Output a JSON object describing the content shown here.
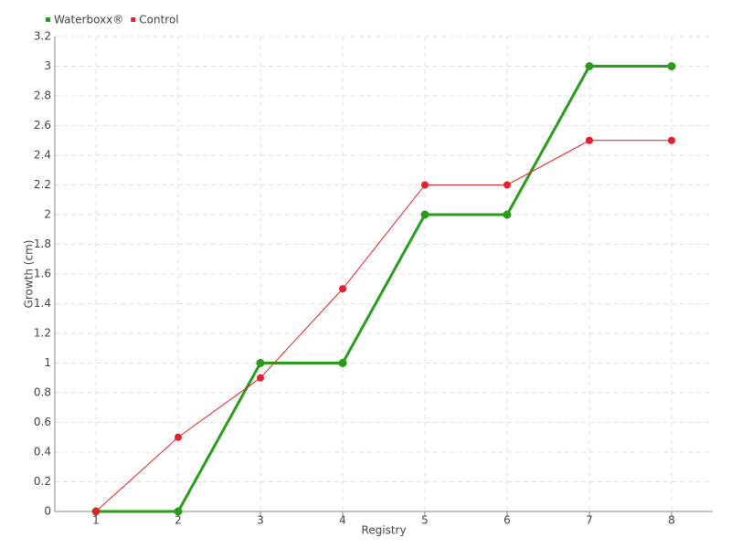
{
  "chart_data": {
    "type": "line",
    "x_label": "Registry",
    "y_label": "Growth (cm)",
    "categories": [
      "1",
      "2",
      "3",
      "4",
      "5",
      "6",
      "7",
      "8"
    ],
    "series": [
      {
        "name": "Waterboxx®",
        "color": "#2a9c1c",
        "values": [
          0,
          0,
          1,
          1,
          2,
          2,
          3,
          3
        ]
      },
      {
        "name": "Control",
        "color": "#e5202c",
        "values": [
          0,
          0.5,
          0.9,
          1.5,
          2.2,
          2.2,
          2.5,
          2.5
        ]
      }
    ],
    "ylim": [
      0,
      3.2
    ],
    "yticks": [
      0,
      0.2,
      0.4,
      0.6,
      0.8,
      1,
      1.2,
      1.4,
      1.6,
      1.8,
      2,
      2.2,
      2.4,
      2.6,
      2.8,
      3,
      3.2
    ],
    "grid": true,
    "legend": "top-left"
  }
}
